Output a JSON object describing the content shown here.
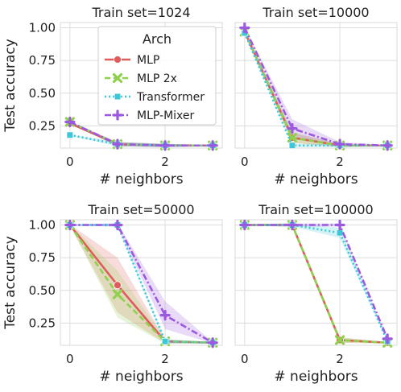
{
  "chart_data": {
    "type": "line",
    "ylabel": "Test accuracy",
    "xlabel": "# neighbors",
    "xlim": [
      -0.2,
      3.2
    ],
    "ylim": [
      0.08,
      1.04
    ],
    "xticks": [
      0,
      2
    ],
    "yticks": [
      0.25,
      0.5,
      0.75,
      1.0
    ],
    "ytick_labels": [
      "0.25",
      "0.50",
      "0.75",
      "1.00"
    ],
    "grid": true,
    "legend": {
      "title": "Arch",
      "placement": "upper-center of first panel",
      "entries": [
        "MLP",
        "MLP 2x",
        "Transformer",
        "MLP-Mixer"
      ]
    },
    "series_styles": [
      {
        "name": "MLP",
        "color": "#e05c5c",
        "dash": "solid",
        "marker": "circle"
      },
      {
        "name": "MLP 2x",
        "color": "#8fd14f",
        "dash": "dashed",
        "marker": "x"
      },
      {
        "name": "Transformer",
        "color": "#3cc7d8",
        "dash": "dotted",
        "marker": "square"
      },
      {
        "name": "MLP-Mixer",
        "color": "#9b59e0",
        "dash": "dashdot",
        "marker": "plus"
      }
    ],
    "panels": [
      {
        "title": "Train set=1024",
        "x": [
          0,
          1,
          2,
          3
        ],
        "series": [
          {
            "name": "MLP",
            "values": [
              0.27,
              0.11,
              0.1,
              0.1
            ]
          },
          {
            "name": "MLP 2x",
            "values": [
              0.28,
              0.11,
              0.1,
              0.1
            ]
          },
          {
            "name": "Transformer",
            "values": [
              0.18,
              0.11,
              0.1,
              0.1
            ]
          },
          {
            "name": "MLP-Mixer",
            "values": [
              0.28,
              0.11,
              0.1,
              0.1
            ]
          }
        ]
      },
      {
        "title": "Train set=10000",
        "x": [
          0,
          1,
          2,
          3
        ],
        "series": [
          {
            "name": "MLP",
            "values": [
              0.97,
              0.16,
              0.1,
              0.1
            ]
          },
          {
            "name": "MLP 2x",
            "values": [
              0.97,
              0.16,
              0.1,
              0.1
            ]
          },
          {
            "name": "Transformer",
            "values": [
              0.96,
              0.1,
              0.1,
              0.1
            ]
          },
          {
            "name": "MLP-Mixer",
            "values": [
              1.0,
              0.23,
              0.11,
              0.1
            ]
          }
        ]
      },
      {
        "title": "Train set=50000",
        "x": [
          0,
          1,
          2,
          3
        ],
        "series": [
          {
            "name": "MLP",
            "values": [
              1.0,
              0.54,
              0.11,
              0.1
            ]
          },
          {
            "name": "MLP 2x",
            "values": [
              1.0,
              0.47,
              0.11,
              0.1
            ]
          },
          {
            "name": "Transformer",
            "values": [
              1.0,
              1.0,
              0.11,
              0.1
            ]
          },
          {
            "name": "MLP-Mixer",
            "values": [
              1.0,
              1.0,
              0.31,
              0.1
            ]
          }
        ]
      },
      {
        "title": "Train set=100000",
        "x": [
          0,
          1,
          2,
          3
        ],
        "series": [
          {
            "name": "MLP",
            "values": [
              1.0,
              1.0,
              0.12,
              0.1
            ]
          },
          {
            "name": "MLP 2x",
            "values": [
              1.0,
              1.0,
              0.12,
              0.1
            ]
          },
          {
            "name": "Transformer",
            "values": [
              1.0,
              1.0,
              0.94,
              0.11
            ]
          },
          {
            "name": "MLP-Mixer",
            "values": [
              1.0,
              1.0,
              1.0,
              0.13
            ]
          }
        ]
      }
    ]
  }
}
